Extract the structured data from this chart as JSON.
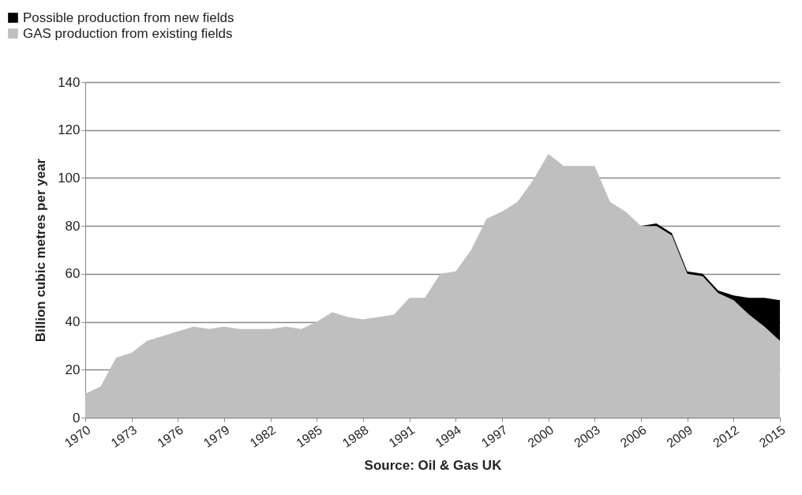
{
  "chart_data": {
    "type": "area",
    "stacked": true,
    "ylabel": "Billion cubic metres per year",
    "annotations": [
      "Source:  Oil & Gas UK"
    ],
    "x": [
      1970,
      1971,
      1972,
      1973,
      1974,
      1975,
      1976,
      1977,
      1978,
      1979,
      1980,
      1981,
      1982,
      1983,
      1984,
      1985,
      1986,
      1987,
      1988,
      1989,
      1990,
      1991,
      1992,
      1993,
      1994,
      1995,
      1996,
      1997,
      1998,
      1999,
      2000,
      2001,
      2002,
      2003,
      2004,
      2005,
      2006,
      2007,
      2008,
      2009,
      2010,
      2011,
      2012,
      2013,
      2014,
      2015
    ],
    "series": [
      {
        "name": "GAS production from existing fields",
        "color": "#bfbfbf",
        "values": [
          10,
          13,
          25,
          27,
          32,
          34,
          36,
          38,
          37,
          38,
          37,
          37,
          37,
          38,
          37,
          40,
          44,
          42,
          41,
          42,
          43,
          50,
          50,
          60,
          61,
          70,
          83,
          86,
          90,
          99,
          110,
          105,
          105,
          105,
          90,
          86,
          80,
          80,
          76,
          60,
          59,
          52,
          49,
          43,
          38,
          32
        ]
      },
      {
        "name": "Possible production from new fields",
        "color": "#000000",
        "values": [
          0,
          0,
          0,
          0,
          0,
          0,
          0,
          0,
          0,
          0,
          0,
          0,
          0,
          0,
          0,
          0,
          0,
          0,
          0,
          0,
          0,
          0,
          0,
          0,
          0,
          0,
          0,
          0,
          0,
          0,
          0,
          0,
          0,
          0,
          0,
          0,
          0,
          1,
          1,
          1,
          1,
          1,
          2,
          7,
          12,
          17
        ]
      }
    ],
    "xlim": [
      1970,
      2015
    ],
    "xticks": [
      1970,
      1973,
      1976,
      1979,
      1982,
      1985,
      1988,
      1991,
      1994,
      1997,
      2000,
      2003,
      2006,
      2009,
      2012,
      2015
    ],
    "ylim": [
      0,
      140
    ],
    "yticks": [
      0,
      20,
      40,
      60,
      80,
      100,
      120,
      140
    ],
    "grid": "y",
    "legend": "top left"
  }
}
